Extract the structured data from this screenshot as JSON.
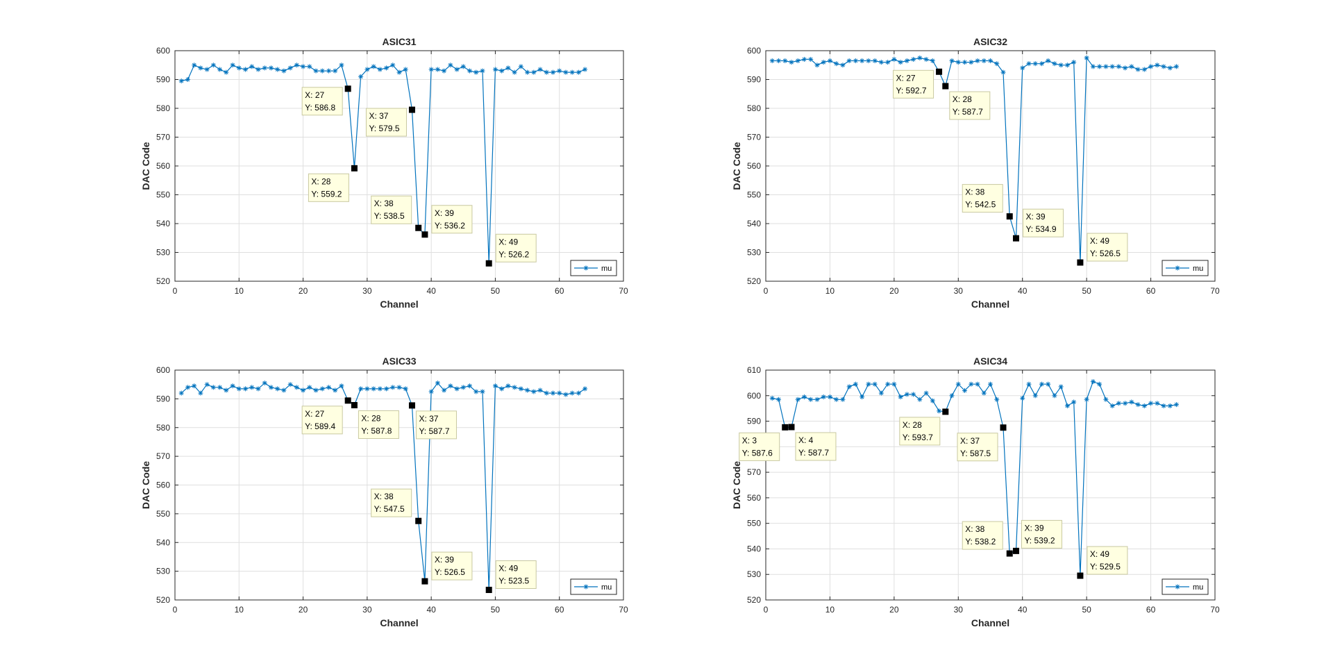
{
  "colors": {
    "series": "#0072BD",
    "grid": "#dfdfdf",
    "axis": "#262626",
    "datatip_bg": "#ffffe1",
    "datatip_border": "#c8c8a0",
    "marker": "#000000"
  },
  "chart_data": [
    {
      "type": "line",
      "title": "ASIC31",
      "xlabel": "Channel",
      "ylabel": "DAC Code",
      "xlim": [
        0,
        70
      ],
      "ylim": [
        520,
        600
      ],
      "xticks": [
        0,
        10,
        20,
        30,
        40,
        50,
        60,
        70
      ],
      "yticks": [
        520,
        530,
        540,
        550,
        560,
        570,
        580,
        590,
        600
      ],
      "grid": true,
      "legend_position": "bottom-right",
      "series": [
        {
          "name": "mu",
          "marker": "asterisk",
          "x": [
            1,
            2,
            3,
            4,
            5,
            6,
            7,
            8,
            9,
            10,
            11,
            12,
            13,
            14,
            15,
            16,
            17,
            18,
            19,
            20,
            21,
            22,
            23,
            24,
            25,
            26,
            27,
            28,
            29,
            30,
            31,
            32,
            33,
            34,
            35,
            36,
            37,
            38,
            39,
            40,
            41,
            42,
            43,
            44,
            45,
            46,
            47,
            48,
            49,
            50,
            51,
            52,
            53,
            54,
            55,
            56,
            57,
            58,
            59,
            60,
            61,
            62,
            63,
            64
          ],
          "y": [
            589.5,
            590,
            595,
            594,
            593.5,
            595,
            593.5,
            592.5,
            595,
            594,
            593.5,
            594.5,
            593.5,
            594,
            594,
            593.5,
            593,
            594,
            595,
            594.5,
            594.5,
            593,
            593,
            593,
            593,
            595,
            586.8,
            559.2,
            591,
            593.5,
            594.5,
            593.5,
            594,
            595,
            592.5,
            593.5,
            579.5,
            538.5,
            536.2,
            593.5,
            593.5,
            593,
            595,
            593.5,
            594.5,
            593,
            592.5,
            593,
            526.2,
            593.5,
            593,
            594,
            592.5,
            594.5,
            592.5,
            592.5,
            593.5,
            592.5,
            592.5,
            593,
            592.5,
            592.5,
            592.5,
            593.5
          ]
        }
      ],
      "datatips": [
        {
          "x": 27,
          "y": 586.8,
          "label_x": "X: 27",
          "label_y": "Y: 586.8",
          "side": "left"
        },
        {
          "x": 28,
          "y": 559.2,
          "label_x": "X: 28",
          "label_y": "Y: 559.2",
          "side": "left-below"
        },
        {
          "x": 37,
          "y": 579.5,
          "label_x": "X: 37",
          "label_y": "Y: 579.5",
          "side": "left"
        },
        {
          "x": 38,
          "y": 538.5,
          "label_x": "X: 38",
          "label_y": "Y: 538.5",
          "side": "left-above"
        },
        {
          "x": 39,
          "y": 536.2,
          "label_x": "X: 39",
          "label_y": "Y: 536.2",
          "side": "right"
        },
        {
          "x": 49,
          "y": 526.2,
          "label_x": "X: 49",
          "label_y": "Y: 526.2",
          "side": "right"
        }
      ]
    },
    {
      "type": "line",
      "title": "ASIC32",
      "xlabel": "Channel",
      "ylabel": "DAC Code",
      "xlim": [
        0,
        70
      ],
      "ylim": [
        520,
        600
      ],
      "xticks": [
        0,
        10,
        20,
        30,
        40,
        50,
        60,
        70
      ],
      "yticks": [
        520,
        530,
        540,
        550,
        560,
        570,
        580,
        590,
        600
      ],
      "grid": true,
      "legend_position": "bottom-right",
      "series": [
        {
          "name": "mu",
          "marker": "asterisk",
          "x": [
            1,
            2,
            3,
            4,
            5,
            6,
            7,
            8,
            9,
            10,
            11,
            12,
            13,
            14,
            15,
            16,
            17,
            18,
            19,
            20,
            21,
            22,
            23,
            24,
            25,
            26,
            27,
            28,
            29,
            30,
            31,
            32,
            33,
            34,
            35,
            36,
            37,
            38,
            39,
            40,
            41,
            42,
            43,
            44,
            45,
            46,
            47,
            48,
            49,
            50,
            51,
            52,
            53,
            54,
            55,
            56,
            57,
            58,
            59,
            60,
            61,
            62,
            63,
            64
          ],
          "y": [
            596.5,
            596.5,
            596.5,
            596,
            596.5,
            597,
            597,
            595,
            596,
            596.5,
            595.5,
            595,
            596.5,
            596.5,
            596.5,
            596.5,
            596.5,
            596,
            596,
            597,
            596,
            596.5,
            597,
            597.5,
            597,
            596.5,
            592.7,
            587.7,
            596.5,
            596,
            596,
            596,
            596.5,
            596.5,
            596.5,
            595.5,
            592.5,
            542.5,
            534.9,
            594,
            595.5,
            595.5,
            595.5,
            596.5,
            595.5,
            595,
            595,
            596,
            526.5,
            597.5,
            594.5,
            594.5,
            594.5,
            594.5,
            594.5,
            594,
            594.5,
            593.5,
            593.5,
            594.5,
            595,
            594.5,
            594,
            594.5
          ]
        }
      ],
      "datatips": [
        {
          "x": 27,
          "y": 592.7,
          "label_x": "X: 27",
          "label_y": "Y: 592.7",
          "side": "left"
        },
        {
          "x": 28,
          "y": 587.7,
          "label_x": "X: 28",
          "label_y": "Y: 587.7",
          "side": "right-below"
        },
        {
          "x": 38,
          "y": 542.5,
          "label_x": "X: 38",
          "label_y": "Y: 542.5",
          "side": "left-above"
        },
        {
          "x": 39,
          "y": 534.9,
          "label_x": "X: 39",
          "label_y": "Y: 534.9",
          "side": "right"
        },
        {
          "x": 49,
          "y": 526.5,
          "label_x": "X: 49",
          "label_y": "Y: 526.5",
          "side": "right"
        }
      ]
    },
    {
      "type": "line",
      "title": "ASIC33",
      "xlabel": "Channel",
      "ylabel": "DAC Code",
      "xlim": [
        0,
        70
      ],
      "ylim": [
        520,
        600
      ],
      "xticks": [
        0,
        10,
        20,
        30,
        40,
        50,
        60,
        70
      ],
      "yticks": [
        520,
        530,
        540,
        550,
        560,
        570,
        580,
        590,
        600
      ],
      "grid": true,
      "legend_position": "bottom-right",
      "series": [
        {
          "name": "mu",
          "marker": "asterisk",
          "x": [
            1,
            2,
            3,
            4,
            5,
            6,
            7,
            8,
            9,
            10,
            11,
            12,
            13,
            14,
            15,
            16,
            17,
            18,
            19,
            20,
            21,
            22,
            23,
            24,
            25,
            26,
            27,
            28,
            29,
            30,
            31,
            32,
            33,
            34,
            35,
            36,
            37,
            38,
            39,
            40,
            41,
            42,
            43,
            44,
            45,
            46,
            47,
            48,
            49,
            50,
            51,
            52,
            53,
            54,
            55,
            56,
            57,
            58,
            59,
            60,
            61,
            62,
            63,
            64
          ],
          "y": [
            592,
            594,
            594.5,
            592,
            595,
            594,
            594,
            593,
            594.5,
            593.5,
            593.5,
            594,
            593.5,
            595.5,
            594,
            593.5,
            593,
            595,
            594,
            593,
            594,
            593,
            593.5,
            594,
            593,
            594.5,
            589.4,
            587.8,
            593.5,
            593.5,
            593.5,
            593.5,
            593.5,
            594,
            594,
            593.5,
            587.7,
            547.5,
            526.5,
            592.5,
            595.5,
            593,
            594.5,
            593.5,
            594,
            594.5,
            592.5,
            592.5,
            523.5,
            594.5,
            593.5,
            594.5,
            594,
            593.5,
            593,
            592.5,
            593,
            592,
            592,
            592,
            591.5,
            592,
            592,
            593.5
          ]
        }
      ],
      "datatips": [
        {
          "x": 27,
          "y": 589.4,
          "label_x": "X: 27",
          "label_y": "Y: 589.4",
          "side": "left-below"
        },
        {
          "x": 28,
          "y": 587.8,
          "label_x": "X: 28",
          "label_y": "Y: 587.8",
          "side": "right-below"
        },
        {
          "x": 37,
          "y": 587.7,
          "label_x": "X: 37",
          "label_y": "Y: 587.7",
          "side": "right-below"
        },
        {
          "x": 38,
          "y": 547.5,
          "label_x": "X: 38",
          "label_y": "Y: 547.5",
          "side": "left-above"
        },
        {
          "x": 39,
          "y": 526.5,
          "label_x": "X: 39",
          "label_y": "Y: 526.5",
          "side": "right"
        },
        {
          "x": 49,
          "y": 523.5,
          "label_x": "X: 49",
          "label_y": "Y: 523.5",
          "side": "right"
        }
      ]
    },
    {
      "type": "line",
      "title": "ASIC34",
      "xlabel": "Channel",
      "ylabel": "DAC Code",
      "xlim": [
        0,
        70
      ],
      "ylim": [
        520,
        610
      ],
      "xticks": [
        0,
        10,
        20,
        30,
        40,
        50,
        60,
        70
      ],
      "yticks": [
        520,
        530,
        540,
        550,
        560,
        570,
        580,
        590,
        600,
        610
      ],
      "grid": true,
      "legend_position": "bottom-right",
      "series": [
        {
          "name": "mu",
          "marker": "asterisk",
          "x": [
            1,
            2,
            3,
            4,
            5,
            6,
            7,
            8,
            9,
            10,
            11,
            12,
            13,
            14,
            15,
            16,
            17,
            18,
            19,
            20,
            21,
            22,
            23,
            24,
            25,
            26,
            27,
            28,
            29,
            30,
            31,
            32,
            33,
            34,
            35,
            36,
            37,
            38,
            39,
            40,
            41,
            42,
            43,
            44,
            45,
            46,
            47,
            48,
            49,
            50,
            51,
            52,
            53,
            54,
            55,
            56,
            57,
            58,
            59,
            60,
            61,
            62,
            63,
            64
          ],
          "y": [
            599,
            598.5,
            587.6,
            587.7,
            598.5,
            599.5,
            598.5,
            598.5,
            599.5,
            599.5,
            598.5,
            598.5,
            603.5,
            604.5,
            599.5,
            604.5,
            604.5,
            601,
            604.5,
            604.5,
            599.5,
            600.5,
            600.5,
            598.5,
            601,
            598,
            594,
            593.7,
            600,
            604.5,
            602,
            604.5,
            604.5,
            601,
            604.5,
            598.5,
            587.5,
            538.2,
            539.2,
            599,
            604.5,
            600,
            604.5,
            604.5,
            600,
            603.5,
            596,
            597.5,
            529.5,
            598.5,
            605.5,
            604.5,
            598.5,
            596,
            597,
            597,
            597.5,
            596.5,
            596,
            597,
            597,
            596,
            596,
            596.5
          ]
        }
      ],
      "datatips": [
        {
          "x": 3,
          "y": 587.6,
          "label_x": "X: 3",
          "label_y": "Y: 587.6",
          "side": "left-below"
        },
        {
          "x": 4,
          "y": 587.7,
          "label_x": "X: 4",
          "label_y": "Y: 587.7",
          "side": "right-below"
        },
        {
          "x": 28,
          "y": 593.7,
          "label_x": "X: 28",
          "label_y": "Y: 593.7",
          "side": "left-below"
        },
        {
          "x": 37,
          "y": 587.5,
          "label_x": "X: 37",
          "label_y": "Y: 587.5",
          "side": "left-below"
        },
        {
          "x": 38,
          "y": 538.2,
          "label_x": "X: 38",
          "label_y": "Y: 538.2",
          "side": "left-above"
        },
        {
          "x": 39,
          "y": 539.2,
          "label_x": "X: 39",
          "label_y": "Y: 539.2",
          "side": "right-above"
        },
        {
          "x": 49,
          "y": 529.5,
          "label_x": "X: 49",
          "label_y": "Y: 529.5",
          "side": "right"
        }
      ]
    }
  ]
}
